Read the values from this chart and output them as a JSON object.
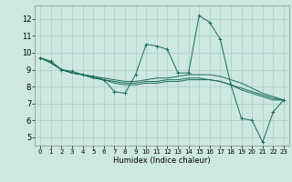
{
  "xlabel": "Humidex (Indice chaleur)",
  "x_ticks": [
    0,
    1,
    2,
    3,
    4,
    5,
    6,
    7,
    8,
    9,
    10,
    11,
    12,
    13,
    14,
    15,
    16,
    17,
    18,
    19,
    20,
    21,
    22,
    23
  ],
  "y_ticks": [
    5,
    6,
    7,
    8,
    9,
    10,
    11,
    12
  ],
  "xlim": [
    -0.5,
    23.5
  ],
  "ylim": [
    4.5,
    12.8
  ],
  "bg_color": "#cce8e0",
  "grid_color": "#aaccc4",
  "line_color": "#1a6b5a",
  "line1_x": [
    0,
    1,
    2,
    3,
    4,
    5,
    6,
    7,
    8,
    9,
    10,
    11,
    12,
    13,
    14,
    15,
    16,
    17,
    18,
    19,
    20,
    21,
    22,
    23
  ],
  "line1_y": [
    9.7,
    9.5,
    9.0,
    8.9,
    8.7,
    8.6,
    8.4,
    7.7,
    7.6,
    8.7,
    10.5,
    10.4,
    10.2,
    8.8,
    8.8,
    12.2,
    11.8,
    10.8,
    8.1,
    6.1,
    6.0,
    4.7,
    6.5,
    7.2
  ],
  "line2_x": [
    0,
    1,
    2,
    3,
    4,
    5,
    6,
    7,
    8,
    9,
    10,
    11,
    12,
    13,
    14,
    15,
    16,
    17,
    18,
    19,
    20,
    21,
    22,
    23
  ],
  "line2_y": [
    9.7,
    9.4,
    9.0,
    8.8,
    8.7,
    8.5,
    8.4,
    8.3,
    8.2,
    8.2,
    8.3,
    8.3,
    8.4,
    8.4,
    8.5,
    8.5,
    8.4,
    8.3,
    8.1,
    7.9,
    7.7,
    7.5,
    7.3,
    7.2
  ],
  "line3_x": [
    0,
    1,
    2,
    3,
    4,
    5,
    6,
    7,
    8,
    9,
    10,
    11,
    12,
    13,
    14,
    15,
    16,
    17,
    18,
    19,
    20,
    21,
    22,
    23
  ],
  "line3_y": [
    9.7,
    9.4,
    9.0,
    8.8,
    8.7,
    8.6,
    8.5,
    8.4,
    8.3,
    8.3,
    8.4,
    8.5,
    8.5,
    8.6,
    8.7,
    8.7,
    8.7,
    8.6,
    8.4,
    8.2,
    7.9,
    7.6,
    7.4,
    7.2
  ],
  "line4_x": [
    0,
    1,
    2,
    3,
    4,
    5,
    6,
    7,
    8,
    9,
    10,
    11,
    12,
    13,
    14,
    15,
    16,
    17,
    18,
    19,
    20,
    21,
    22,
    23
  ],
  "line4_y": [
    9.7,
    9.4,
    9.0,
    8.8,
    8.7,
    8.5,
    8.4,
    8.2,
    8.1,
    8.1,
    8.2,
    8.2,
    8.3,
    8.3,
    8.4,
    8.4,
    8.4,
    8.3,
    8.1,
    7.8,
    7.6,
    7.4,
    7.2,
    7.2
  ]
}
